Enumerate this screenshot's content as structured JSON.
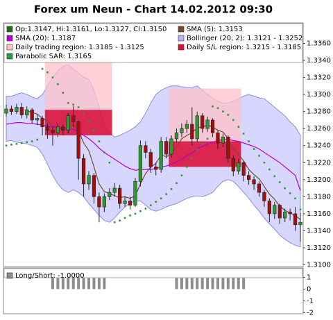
{
  "chart_data": [
    {
      "type": "candlestick",
      "title": "Forex um Neun - Chart 14.02.2012 09:30",
      "ylim": [
        1.3098,
        1.3384
      ],
      "yticks": [
        {
          "value": 1.31,
          "label": "1.3100"
        },
        {
          "value": 1.312,
          "label": "1.3120"
        },
        {
          "value": 1.314,
          "label": "1.3140"
        },
        {
          "value": 1.316,
          "label": "1.3160"
        },
        {
          "value": 1.318,
          "label": "1.3180"
        },
        {
          "value": 1.32,
          "label": "1.3200"
        },
        {
          "value": 1.322,
          "label": "1.3220"
        },
        {
          "value": 1.324,
          "label": "1.3240"
        },
        {
          "value": 1.326,
          "label": "1.3260"
        },
        {
          "value": 1.328,
          "label": "1.3280"
        },
        {
          "value": 1.33,
          "label": "1.3300"
        },
        {
          "value": 1.332,
          "label": "1.3320"
        },
        {
          "value": 1.334,
          "label": "1.3340"
        },
        {
          "value": 1.336,
          "label": "1.3360"
        }
      ],
      "grid": false,
      "series": [
        {
          "name": "Op:1.3147, Hi:1.3161, Lo:1.3127, Cl:1.3150",
          "kind": "candlestick",
          "color": "#1e6e1e",
          "up_color": "#2f9a2f",
          "down_color": "#a50d0d",
          "open": [
            1.3278,
            1.3283,
            1.328,
            1.3285,
            1.3276,
            1.3282,
            1.327,
            1.3272,
            1.3262,
            1.3258,
            1.3255,
            1.3262,
            1.3258,
            1.3275,
            1.3268,
            1.3225,
            1.3195,
            1.3205,
            1.318,
            1.3168,
            1.318,
            1.3185,
            1.319,
            1.3172,
            1.3175,
            1.317,
            1.3198,
            1.324,
            1.3232,
            1.3215,
            1.3212,
            1.3245,
            1.323,
            1.3248,
            1.3255,
            1.326,
            1.3265,
            1.3248,
            1.3275,
            1.326,
            1.327,
            1.3255,
            1.3243,
            1.325,
            1.3225,
            1.321,
            1.322,
            1.3205,
            1.32,
            1.3195,
            1.3185,
            1.3175,
            1.316,
            1.317,
            1.3155,
            1.3162,
            1.316,
            1.3147
          ],
          "high": [
            1.3288,
            1.3287,
            1.3289,
            1.329,
            1.3286,
            1.3284,
            1.3276,
            1.3275,
            1.3266,
            1.3262,
            1.3266,
            1.3265,
            1.3278,
            1.3286,
            1.327,
            1.323,
            1.321,
            1.3208,
            1.3185,
            1.3184,
            1.319,
            1.3196,
            1.3194,
            1.318,
            1.318,
            1.3202,
            1.3246,
            1.3245,
            1.3236,
            1.322,
            1.325,
            1.325,
            1.3252,
            1.326,
            1.3266,
            1.327,
            1.3285,
            1.328,
            1.3278,
            1.3274,
            1.3272,
            1.3258,
            1.3254,
            1.3252,
            1.3228,
            1.3224,
            1.3222,
            1.321,
            1.3204,
            1.3198,
            1.3188,
            1.3178,
            1.3174,
            1.3172,
            1.3166,
            1.3166,
            1.3168,
            1.3161
          ],
          "low": [
            1.3274,
            1.3276,
            1.3277,
            1.3272,
            1.3272,
            1.3266,
            1.3264,
            1.3252,
            1.3248,
            1.324,
            1.325,
            1.3252,
            1.3254,
            1.3262,
            1.32,
            1.318,
            1.3188,
            1.3172,
            1.315,
            1.3162,
            1.3176,
            1.318,
            1.3166,
            1.3168,
            1.3165,
            1.3168,
            1.3192,
            1.3225,
            1.3208,
            1.3205,
            1.3208,
            1.3225,
            1.3226,
            1.3244,
            1.325,
            1.3255,
            1.324,
            1.3244,
            1.3255,
            1.3256,
            1.325,
            1.3236,
            1.3238,
            1.322,
            1.3204,
            1.3206,
            1.3198,
            1.3194,
            1.3188,
            1.318,
            1.3168,
            1.315,
            1.3154,
            1.3148,
            1.315,
            1.3152,
            1.314,
            1.3127
          ],
          "close": [
            1.3283,
            1.328,
            1.3285,
            1.3276,
            1.3282,
            1.327,
            1.3272,
            1.3262,
            1.3258,
            1.3255,
            1.3262,
            1.3258,
            1.3275,
            1.3268,
            1.3225,
            1.3195,
            1.3205,
            1.318,
            1.3168,
            1.318,
            1.3185,
            1.319,
            1.3172,
            1.3175,
            1.317,
            1.3198,
            1.324,
            1.3232,
            1.3215,
            1.3212,
            1.3245,
            1.323,
            1.3248,
            1.3255,
            1.326,
            1.3265,
            1.3248,
            1.3275,
            1.326,
            1.327,
            1.3255,
            1.3243,
            1.325,
            1.3225,
            1.321,
            1.322,
            1.3205,
            1.32,
            1.3195,
            1.3185,
            1.3175,
            1.316,
            1.317,
            1.3155,
            1.3162,
            1.316,
            1.3147,
            1.315
          ]
        },
        {
          "name": "SMA (5): 1.3153",
          "kind": "line",
          "color": "#7a4a2a",
          "values": [
            null,
            null,
            null,
            null,
            1.3281,
            1.3279,
            1.3277,
            1.3272,
            1.3269,
            1.3263,
            1.3261,
            1.3259,
            1.3262,
            1.3264,
            1.3258,
            1.3243,
            1.3234,
            1.3215,
            1.3195,
            1.3186,
            1.3184,
            1.3181,
            1.3179,
            1.318,
            1.3178,
            1.3181,
            1.3195,
            1.3207,
            1.3215,
            1.3219,
            1.3229,
            1.3227,
            1.323,
            1.3238,
            1.3248,
            1.3252,
            1.3255,
            1.3261,
            1.3262,
            1.3264,
            1.3262,
            1.3258,
            1.3256,
            1.3248,
            1.3236,
            1.323,
            1.3222,
            1.3212,
            1.3206,
            1.3201,
            1.3192,
            1.3183,
            1.3177,
            1.3169,
            1.3164,
            1.3161,
            1.3158,
            1.3153
          ]
        },
        {
          "name": "SMA (20): 1.3187",
          "kind": "line",
          "color": "#b400d2",
          "values": [
            1.3265,
            1.3266,
            1.3267,
            1.3267,
            1.3266,
            1.3266,
            1.3265,
            1.3264,
            1.3263,
            1.3262,
            1.3261,
            1.326,
            1.326,
            1.3259,
            1.3256,
            1.3252,
            1.3248,
            1.3243,
            1.3237,
            1.3232,
            1.3228,
            1.3224,
            1.322,
            1.3216,
            1.3213,
            1.3211,
            1.3212,
            1.3212,
            1.3212,
            1.3213,
            1.3215,
            1.3216,
            1.3218,
            1.3221,
            1.3224,
            1.3228,
            1.3231,
            1.3236,
            1.3239,
            1.3242,
            1.3244,
            1.3246,
            1.3247,
            1.3247,
            1.3246,
            1.3245,
            1.3243,
            1.3241,
            1.3239,
            1.3236,
            1.3232,
            1.3228,
            1.3224,
            1.322,
            1.3215,
            1.321,
            1.3205,
            1.3187
          ]
        },
        {
          "name": "Bollinger (20, 2): 1.3121 - 1.3252",
          "kind": "band",
          "color": "#b4b4ff",
          "upper": [
            1.3298,
            1.3298,
            1.33,
            1.3302,
            1.33,
            1.3297,
            1.3295,
            1.33,
            1.331,
            1.332,
            1.3328,
            1.3333,
            1.3335,
            1.333,
            1.3325,
            1.332,
            1.3318,
            1.3305,
            1.3285,
            1.3265,
            1.3255,
            1.325,
            1.3252,
            1.3255,
            1.3258,
            1.3262,
            1.3268,
            1.3278,
            1.329,
            1.33,
            1.3305,
            1.3308,
            1.331,
            1.331,
            1.3309,
            1.3308,
            1.3308,
            1.331,
            1.3305,
            1.33,
            1.3296,
            1.3292,
            1.329,
            1.329,
            1.3292,
            1.3295,
            1.3298,
            1.33,
            1.3298,
            1.3296,
            1.3295,
            1.329,
            1.3285,
            1.328,
            1.3275,
            1.3268,
            1.3262,
            1.3252
          ],
          "lower": [
            1.3245,
            1.3246,
            1.3244,
            1.3243,
            1.3242,
            1.324,
            1.3238,
            1.323,
            1.3218,
            1.3205,
            1.3195,
            1.3188,
            1.3185,
            1.3188,
            1.3185,
            1.318,
            1.3172,
            1.3165,
            1.3158,
            1.3152,
            1.315,
            1.3155,
            1.3162,
            1.3168,
            1.3172,
            1.3175,
            1.3175,
            1.317,
            1.3165,
            1.3163,
            1.3165,
            1.3168,
            1.317,
            1.3172,
            1.3175,
            1.3178,
            1.318,
            1.3181,
            1.318,
            1.3182,
            1.3185,
            1.3192,
            1.3198,
            1.32,
            1.3198,
            1.3192,
            1.3185,
            1.3178,
            1.317,
            1.3163,
            1.3155,
            1.3148,
            1.3142,
            1.3135,
            1.313,
            1.3126,
            1.3123,
            1.3121
          ]
        },
        {
          "name": "Daily trading region: 1.3185 - 1.3125",
          "kind": "region",
          "color": "#ffc0c8",
          "regions": [
            {
              "start": 8,
              "end": 20,
              "high": 1.334,
              "low": 1.3282
            },
            {
              "start": 32,
              "end": 45,
              "high": 1.3307,
              "low": 1.3245
            }
          ]
        },
        {
          "name": "Daily S/L region: 1.3215 - 1.3185",
          "kind": "region",
          "color": "#dc143c",
          "regions": [
            {
              "start": 8,
              "end": 20,
              "high": 1.3282,
              "low": 1.3252
            },
            {
              "start": 32,
              "end": 45,
              "high": 1.3245,
              "low": 1.3215
            }
          ]
        },
        {
          "name": "Parabolic SAR: 1.3165",
          "kind": "dots",
          "color": "#2a9a3a",
          "values": [
            1.324,
            1.3241,
            1.3242,
            1.3243,
            1.3244,
            1.3245,
            1.3247,
            1.333,
            1.3326,
            1.332,
            1.3312,
            1.3302,
            1.329,
            1.3288,
            1.3285,
            1.3278,
            1.3268,
            1.3258,
            1.3245,
            1.3232,
            1.322,
            1.315,
            1.3152,
            1.3155,
            1.3158,
            1.316,
            1.3163,
            1.3166,
            1.317,
            1.3174,
            1.3178,
            1.3183,
            1.3189,
            1.3196,
            1.3205,
            1.3215,
            1.3225,
            1.3235,
            1.3242,
            1.3248,
            1.3286,
            1.3284,
            1.328,
            1.3276,
            1.327,
            1.3262,
            1.3254,
            1.3245,
            1.3236,
            1.3228,
            1.322,
            1.3212,
            1.3204,
            1.3197,
            1.319,
            1.3184,
            1.3178,
            1.3165
          ]
        }
      ]
    },
    {
      "type": "bar",
      "ylim": [
        -2.1,
        1.8
      ],
      "yticks": [
        1,
        0,
        -1,
        -2
      ],
      "grid": false,
      "series": [
        {
          "name": "Long/Short: -1.0000",
          "kind": "bar",
          "color": "#8c8c8c",
          "values": [
            null,
            null,
            null,
            null,
            null,
            null,
            null,
            null,
            null,
            1,
            1,
            1,
            1,
            1,
            1,
            1,
            1,
            1,
            1,
            1,
            null,
            null,
            null,
            null,
            null,
            null,
            null,
            null,
            null,
            null,
            null,
            null,
            null,
            1,
            1,
            1,
            1,
            1,
            1,
            1,
            1,
            1,
            1,
            1,
            1,
            1,
            1,
            null,
            null,
            null,
            null,
            null,
            null,
            null,
            null,
            null,
            null,
            null
          ]
        }
      ]
    }
  ]
}
